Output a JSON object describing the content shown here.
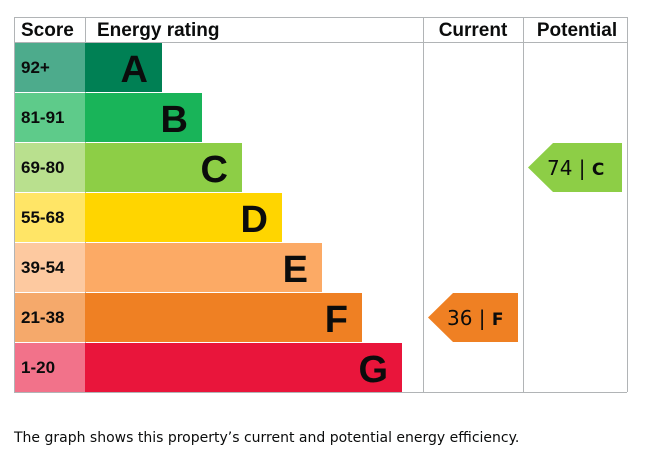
{
  "chart_data": {
    "type": "bar",
    "headers": {
      "score": "Score",
      "rating": "Energy rating",
      "current": "Current",
      "potential": "Potential"
    },
    "bands": [
      {
        "range": "92+",
        "letter": "A",
        "min": 92,
        "color": "#008054",
        "score_color": "#4dab8c"
      },
      {
        "range": "81-91",
        "letter": "B",
        "min": 81,
        "color": "#19b459",
        "score_color": "#5ecb8a"
      },
      {
        "range": "69-80",
        "letter": "C",
        "min": 69,
        "color": "#8dce46",
        "score_color": "#b9e08e"
      },
      {
        "range": "55-68",
        "letter": "D",
        "min": 55,
        "color": "#ffd500",
        "score_color": "#ffe566"
      },
      {
        "range": "39-54",
        "letter": "E",
        "min": 39,
        "color": "#fcaa65",
        "score_color": "#fdc9a0"
      },
      {
        "range": "21-38",
        "letter": "F",
        "min": 21,
        "color": "#ef8023",
        "score_color": "#f5a96b"
      },
      {
        "range": "1-20",
        "letter": "G",
        "min": 1,
        "color": "#e9153b",
        "score_color": "#f2728a"
      }
    ],
    "current": {
      "value": 36,
      "letter": "F",
      "separator": "|"
    },
    "potential": {
      "value": 74,
      "letter": "C",
      "separator": "|"
    }
  },
  "caption": "The graph shows this property’s current and potential energy efficiency."
}
